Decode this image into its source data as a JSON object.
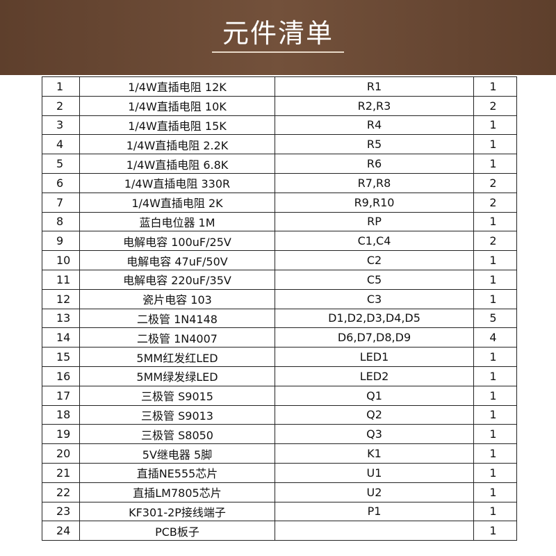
{
  "header": {
    "title": "元件清单"
  },
  "table": {
    "rows": [
      [
        1,
        "1/4W直插电阻 12K",
        "R1",
        1
      ],
      [
        2,
        "1/4W直插电阻 10K",
        "R2,R3",
        2
      ],
      [
        3,
        "1/4W直插电阻 15K",
        "R4",
        1
      ],
      [
        4,
        "1/4W直插电阻 2.2K",
        "R5",
        1
      ],
      [
        5,
        "1/4W直插电阻 6.8K",
        "R6",
        1
      ],
      [
        6,
        "1/4W直插电阻 330R",
        "R7,R8",
        2
      ],
      [
        7,
        "1/4W直插电阻 2K",
        "R9,R10",
        2
      ],
      [
        8,
        "蓝白电位器 1M",
        "RP",
        1
      ],
      [
        9,
        "电解电容 100uF/25V",
        "C1,C4",
        2
      ],
      [
        10,
        "电解电容 47uF/50V",
        "C2",
        1
      ],
      [
        11,
        "电解电容 220uF/35V",
        "C5",
        1
      ],
      [
        12,
        "瓷片电容 103",
        "C3",
        1
      ],
      [
        13,
        "二极管 1N4148",
        "D1,D2,D3,D4,D5",
        5
      ],
      [
        14,
        "二极管 1N4007",
        "D6,D7,D8,D9",
        4
      ],
      [
        15,
        "5MM红发红LED",
        "LED1",
        1
      ],
      [
        16,
        "5MM绿发绿LED",
        "LED2",
        1
      ],
      [
        17,
        "三极管 S9015",
        "Q1",
        1
      ],
      [
        18,
        "三极管 S9013",
        "Q2",
        1
      ],
      [
        19,
        "三极管 S8050",
        "Q3",
        1
      ],
      [
        20,
        "5V继电器 5脚",
        "K1",
        1
      ],
      [
        21,
        "直插NE555芯片",
        "U1",
        1
      ],
      [
        22,
        "直插LM7805芯片",
        "U2",
        1
      ],
      [
        23,
        "KF301-2P接线端子",
        "P1",
        1
      ],
      [
        24,
        "PCB板子",
        null,
        1
      ]
    ]
  }
}
